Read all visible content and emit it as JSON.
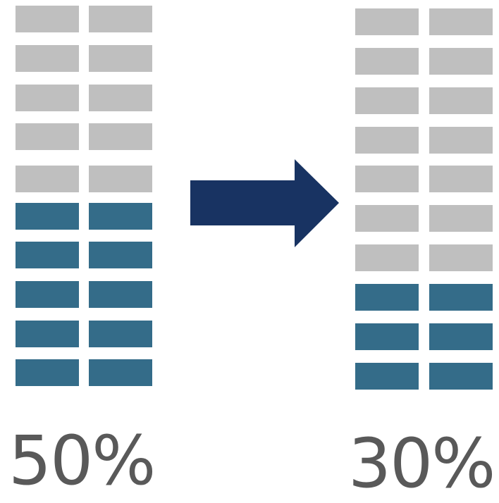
{
  "colors": {
    "inactive": "#bfbfbf",
    "active": "#346c89",
    "arrow": "#183362",
    "text": "#595959"
  },
  "before": {
    "percent_label": "50%",
    "rows_total": 10,
    "rows_active": 5,
    "columns": 2
  },
  "after": {
    "percent_label": "30%",
    "rows_total": 10,
    "rows_active": 3,
    "columns": 2
  },
  "arrow_icon": "right-arrow-icon"
}
